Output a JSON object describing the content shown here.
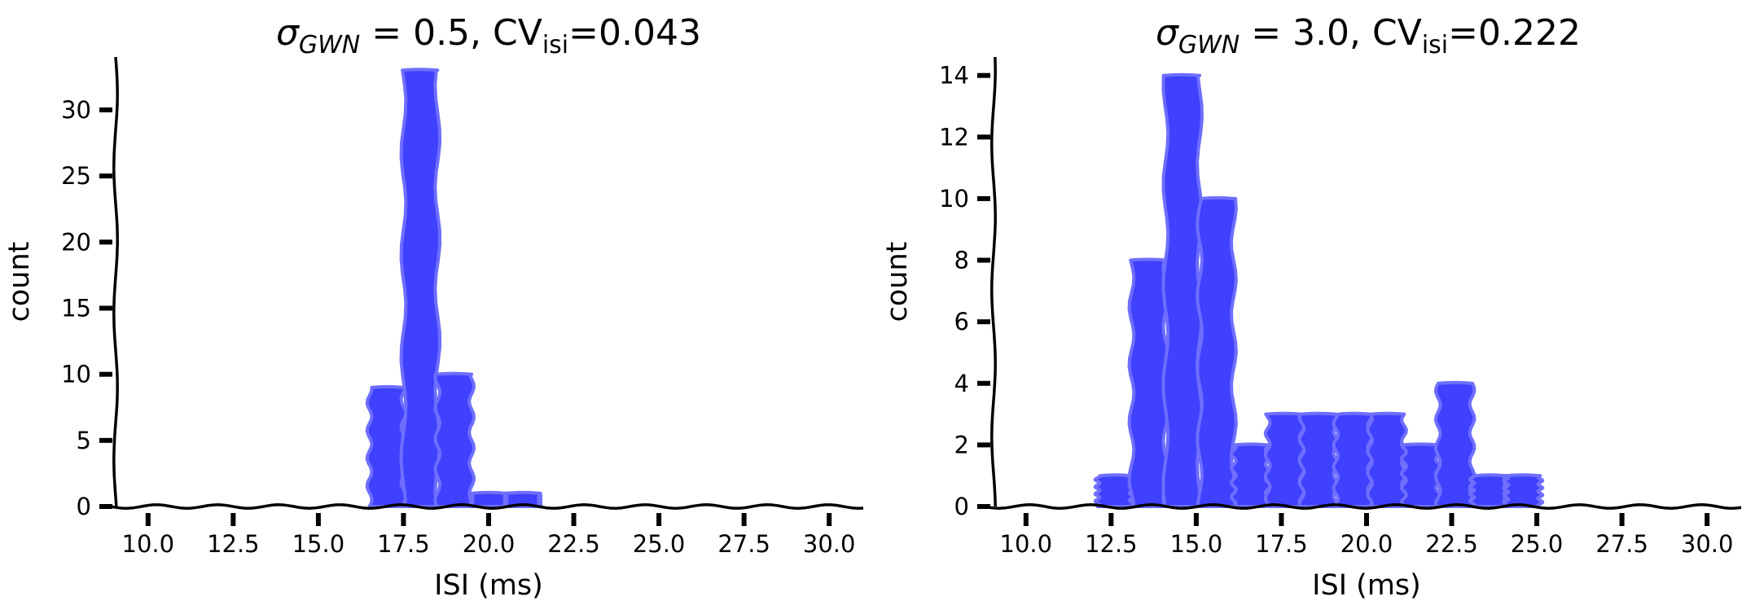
{
  "style": {
    "bar_fill": "#4040ff",
    "bar_edge": "#6e6eff",
    "axis_color": "#000000",
    "background": "#ffffff"
  },
  "chart_data": [
    {
      "type": "bar",
      "title": {
        "sigma_symbol": "σ",
        "sigma_subscript": "GWN",
        "equals_value": " = 0.5, CV",
        "cv_subscript": "isi",
        "cv_value": "=0.043"
      },
      "xlabel": "ISI (ms)",
      "ylabel": "count",
      "xlim": [
        9,
        31
      ],
      "ylim": [
        0,
        34
      ],
      "xticks": [
        10.0,
        12.5,
        15.0,
        17.5,
        20.0,
        22.5,
        25.0,
        27.5,
        30.0
      ],
      "xtick_labels": [
        "10.0",
        "12.5",
        "15.0",
        "17.5",
        "20.0",
        "22.5",
        "25.0",
        "27.5",
        "30.0"
      ],
      "yticks": [
        0,
        5,
        10,
        15,
        20,
        25,
        30
      ],
      "ytick_labels": [
        "0",
        "5",
        "10",
        "15",
        "20",
        "25",
        "30"
      ],
      "bin_width": 1.0,
      "bins": [
        {
          "left": 16.5,
          "count": 9
        },
        {
          "left": 17.5,
          "count": 33
        },
        {
          "left": 18.5,
          "count": 10
        },
        {
          "left": 19.5,
          "count": 1
        },
        {
          "left": 20.5,
          "count": 1
        }
      ],
      "grid": false
    },
    {
      "type": "bar",
      "title": {
        "sigma_symbol": "σ",
        "sigma_subscript": "GWN",
        "equals_value": " = 3.0, CV",
        "cv_subscript": "isi",
        "cv_value": "=0.222"
      },
      "xlabel": "ISI (ms)",
      "ylabel": "count",
      "xlim": [
        9,
        31
      ],
      "ylim": [
        0,
        14.6
      ],
      "xticks": [
        10.0,
        12.5,
        15.0,
        17.5,
        20.0,
        22.5,
        25.0,
        27.5,
        30.0
      ],
      "xtick_labels": [
        "10.0",
        "12.5",
        "15.0",
        "17.5",
        "20.0",
        "22.5",
        "25.0",
        "27.5",
        "30.0"
      ],
      "yticks": [
        0,
        2,
        4,
        6,
        8,
        10,
        12,
        14
      ],
      "ytick_labels": [
        "0",
        "2",
        "4",
        "6",
        "8",
        "10",
        "12",
        "14"
      ],
      "bin_width": 1.0,
      "bins": [
        {
          "left": 12.1,
          "count": 1
        },
        {
          "left": 13.1,
          "count": 8
        },
        {
          "left": 14.1,
          "count": 14
        },
        {
          "left": 15.1,
          "count": 10
        },
        {
          "left": 16.1,
          "count": 2
        },
        {
          "left": 17.1,
          "count": 3
        },
        {
          "left": 18.1,
          "count": 3
        },
        {
          "left": 19.1,
          "count": 3
        },
        {
          "left": 20.1,
          "count": 3
        },
        {
          "left": 21.1,
          "count": 2
        },
        {
          "left": 22.1,
          "count": 4
        },
        {
          "left": 23.1,
          "count": 1
        },
        {
          "left": 24.1,
          "count": 1
        }
      ],
      "grid": false
    }
  ]
}
